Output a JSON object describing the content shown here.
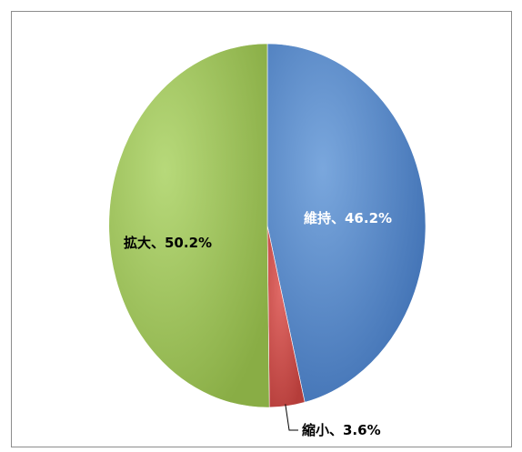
{
  "chart_data": {
    "type": "pie",
    "slices": [
      {
        "label": "維持、46.2%",
        "category": "維持",
        "value": 46.2,
        "color": "#4f81bd"
      },
      {
        "label": "縮小、3.6%",
        "category": "縮小",
        "value": 3.6,
        "color": "#c0504d"
      },
      {
        "label": "拡大、50.2%",
        "category": "拡大",
        "value": 50.2,
        "color": "#9bbb59"
      }
    ],
    "start_angle": "12 o'clock",
    "direction": "clockwise",
    "legend": "none",
    "label_colors": {
      "維持": "#ffffff",
      "縮小": "#000000",
      "拡大": "#000000"
    }
  }
}
